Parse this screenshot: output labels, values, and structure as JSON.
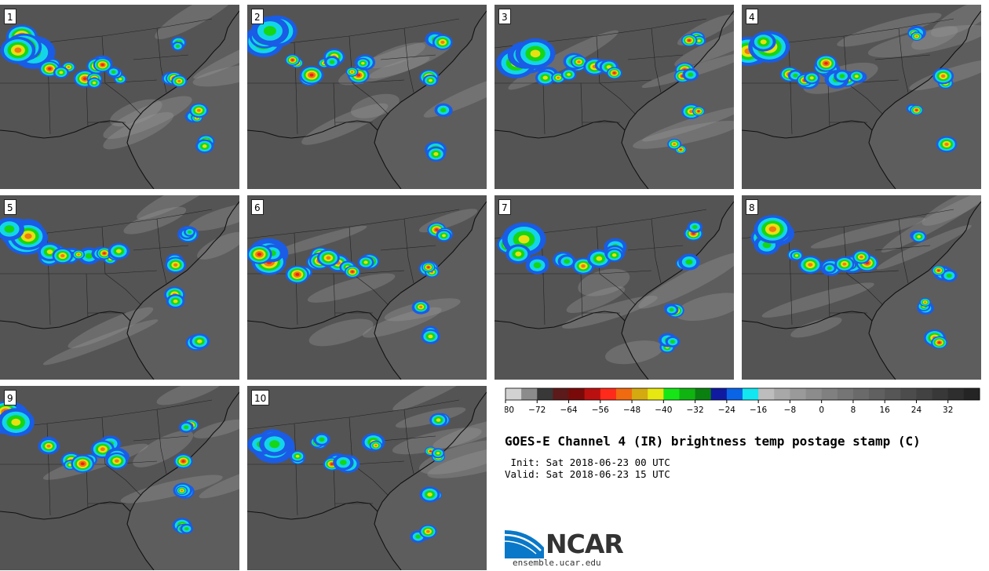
{
  "panels": [
    "1",
    "2",
    "3",
    "4",
    "5",
    "6",
    "7",
    "8",
    "9",
    "10"
  ],
  "colorbar": {
    "colors": [
      "#d2d2d2",
      "#8c8c8c",
      "#383838",
      "#5c1a1a",
      "#7a0a0a",
      "#bb1010",
      "#ff2a1a",
      "#f06a10",
      "#d4aa10",
      "#e7e712",
      "#16e616",
      "#10b410",
      "#0a8010",
      "#101aa0",
      "#0a64e6",
      "#12e6f0",
      "#bdbdbd",
      "#a8a8a8",
      "#9a9a9a",
      "#8c8c8c",
      "#808080",
      "#757575",
      "#6a6a6a",
      "#606060",
      "#565656",
      "#4c4c4c",
      "#424242",
      "#383838",
      "#2e2e2e",
      "#242424"
    ],
    "ticks": [
      "−80",
      "−72",
      "−64",
      "−56",
      "−48",
      "−40",
      "−32",
      "−24",
      "−16",
      "−8",
      "0",
      "8",
      "16",
      "24",
      "32"
    ]
  },
  "title": "GOES-E Channel 4 (IR) brightness temp postage stamp (C)",
  "init_line": " Init: Sat 2018-06-23 00 UTC",
  "valid_line": "Valid: Sat 2018-06-23 15 UTC",
  "logo": {
    "name": "NCAR",
    "url": "ensemble.ucar.edu"
  }
}
